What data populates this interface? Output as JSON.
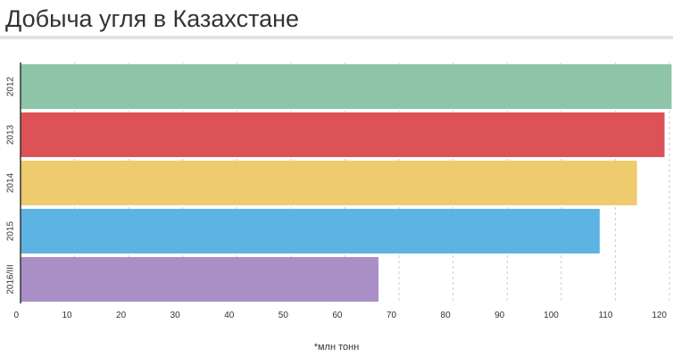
{
  "chart_data": {
    "type": "hbar",
    "title": "Добыча угля в Казахстане",
    "note": "*млн тонн",
    "categories": [
      "2012",
      "2013",
      "2014",
      "2015",
      "2016/III"
    ],
    "values": [
      120.4,
      119.1,
      114,
      107.1,
      66.2
    ],
    "colors": [
      "#8ec4a8",
      "#dc5257",
      "#eecb6d",
      "#5db4e3",
      "#aa8fc7"
    ],
    "xlim": [
      0,
      120
    ],
    "xticks": [
      0,
      10,
      20,
      30,
      40,
      50,
      60,
      70,
      80,
      90,
      100,
      110,
      120
    ],
    "grid": true
  }
}
